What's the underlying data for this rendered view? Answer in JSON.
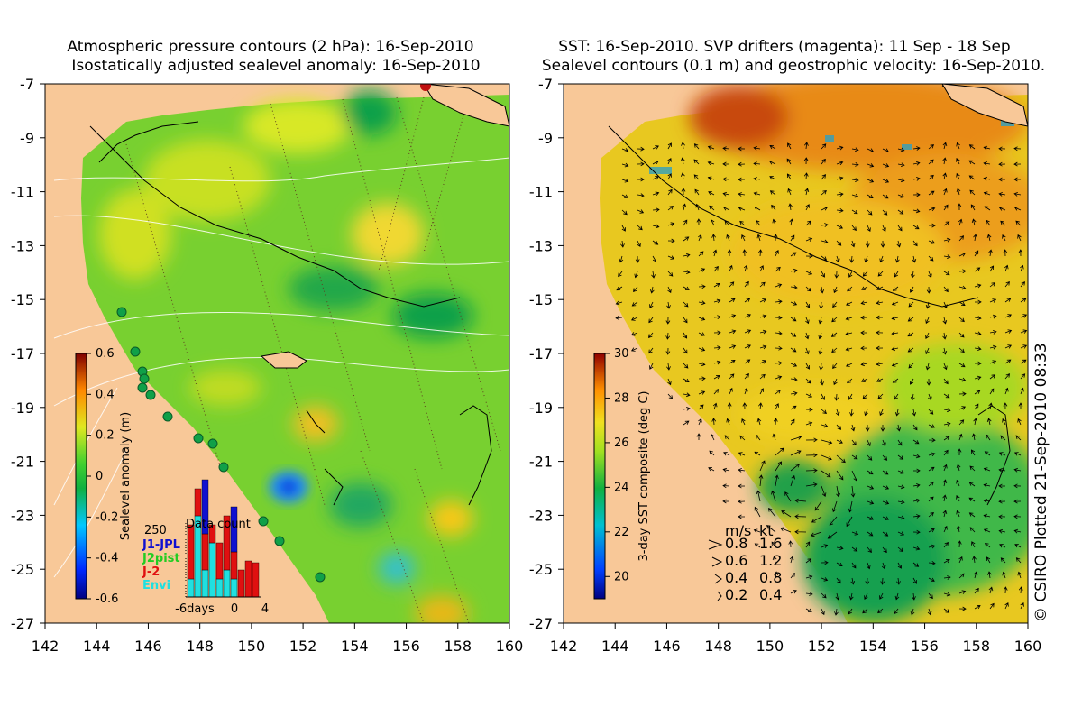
{
  "left_panel": {
    "title_line1": "Atmospheric pressure contours (2 hPa): 16-Sep-2010",
    "title_line2": "Isostatically adjusted sealevel anomaly: 16-Sep-2010",
    "colorbar": {
      "label": "Sealevel anomaly (m)",
      "ticks": [
        "0.6",
        "0.4",
        "0.2",
        "0",
        "-0.2",
        "-0.4",
        "-0.6"
      ],
      "range": [
        -0.6,
        0.6
      ]
    },
    "data_count": {
      "title": "Data count",
      "y_max_label": "250",
      "x_ticks": [
        "-6days",
        "0",
        "4"
      ],
      "legend": [
        {
          "label": "J1-JPL",
          "color": "#1010d0"
        },
        {
          "label": "J2pist",
          "color": "#22cc22"
        },
        {
          "label": "J-2",
          "color": "#e01010"
        },
        {
          "label": "Envi",
          "color": "#20e0e0"
        }
      ]
    }
  },
  "right_panel": {
    "title_line1": "SST: 16-Sep-2010. SVP drifters (magenta): 11 Sep - 18 Sep",
    "title_line2": "Sealevel contours (0.1 m) and geostrophic velocity: 16-Sep-2010.",
    "colorbar": {
      "label": "3-day SST composite (deg C)",
      "ticks": [
        "30",
        "28",
        "26",
        "24",
        "22",
        "20"
      ],
      "range": [
        19,
        30
      ]
    },
    "velocity_legend": {
      "header_ms": "m/s",
      "header_kt": "kt",
      "rows": [
        {
          "ms": "0.8",
          "kt": "1.6"
        },
        {
          "ms": "0.6",
          "kt": "1.2"
        },
        {
          "ms": "0.4",
          "kt": "0.8"
        },
        {
          "ms": "0.2",
          "kt": "0.4"
        }
      ]
    }
  },
  "axes": {
    "x_ticks": [
      "142",
      "144",
      "146",
      "148",
      "150",
      "152",
      "154",
      "156",
      "158",
      "160"
    ],
    "y_ticks": [
      "-7",
      "-9",
      "-11",
      "-13",
      "-15",
      "-17",
      "-19",
      "-21",
      "-23",
      "-25",
      "-27"
    ]
  },
  "credit": "© CSIRO Plotted 21-Sep-2010 08:33",
  "colors": {
    "land": "#f8c898",
    "ocean_base": "#78d030",
    "sst_warm": "#e07810",
    "sst_mid": "#f0d020"
  }
}
